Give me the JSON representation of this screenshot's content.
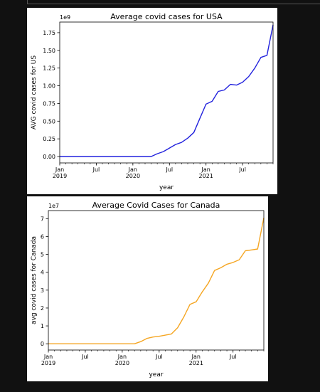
{
  "chart_data": [
    {
      "type": "line",
      "title": "Average covid cases for USA",
      "xlabel": "year",
      "ylabel": "AVG covid cases for US",
      "offset_label": "1e9",
      "color": "#2222dd",
      "x_ticks": [
        {
          "t": 0,
          "lines": [
            "Jan",
            "2019"
          ]
        },
        {
          "t": 6,
          "lines": [
            "Jul"
          ]
        },
        {
          "t": 12,
          "lines": [
            "Jan",
            "2020"
          ]
        },
        {
          "t": 18,
          "lines": [
            "Jul"
          ]
        },
        {
          "t": 24,
          "lines": [
            "Jan",
            "2021"
          ]
        },
        {
          "t": 30,
          "lines": [
            "Jul"
          ]
        }
      ],
      "y_ticks": [
        {
          "v": 0.0,
          "label": "0.00"
        },
        {
          "v": 0.25,
          "label": "0.25"
        },
        {
          "v": 0.5,
          "label": "0.50"
        },
        {
          "v": 0.75,
          "label": "0.75"
        },
        {
          "v": 1.0,
          "label": "1.00"
        },
        {
          "v": 1.25,
          "label": "1.25"
        },
        {
          "v": 1.5,
          "label": "1.50"
        },
        {
          "v": 1.75,
          "label": "1.75"
        }
      ],
      "xlim": [
        0,
        35
      ],
      "ylim": [
        -0.09,
        1.9
      ],
      "x": [
        0,
        1,
        2,
        3,
        4,
        5,
        6,
        7,
        8,
        9,
        10,
        11,
        12,
        13,
        14,
        15,
        16,
        17,
        18,
        19,
        20,
        21,
        22,
        23,
        24,
        25,
        26,
        27,
        28,
        29,
        30,
        31,
        32,
        33,
        34,
        35
      ],
      "values": [
        0,
        0,
        0,
        0,
        0,
        0,
        0,
        0,
        0,
        0,
        0,
        0,
        0,
        0,
        0,
        0.0,
        0.04,
        0.07,
        0.12,
        0.17,
        0.2,
        0.26,
        0.34,
        0.54,
        0.74,
        0.78,
        0.92,
        0.94,
        1.02,
        1.01,
        1.05,
        1.13,
        1.25,
        1.4,
        1.43,
        1.86
      ]
    },
    {
      "type": "line",
      "title": "Average Covid Cases for Canada",
      "xlabel": "year",
      "ylabel": "avg covid cases for Canada",
      "offset_label": "1e7",
      "color": "#f5a623",
      "x_ticks": [
        {
          "t": 0,
          "lines": [
            "Jan",
            "2019"
          ]
        },
        {
          "t": 6,
          "lines": [
            "Jul"
          ]
        },
        {
          "t": 12,
          "lines": [
            "Jan",
            "2020"
          ]
        },
        {
          "t": 18,
          "lines": [
            "Jul"
          ]
        },
        {
          "t": 24,
          "lines": [
            "Jan",
            "2021"
          ]
        },
        {
          "t": 30,
          "lines": [
            "Jul"
          ]
        }
      ],
      "y_ticks": [
        {
          "v": 0,
          "label": "0"
        },
        {
          "v": 1,
          "label": "1"
        },
        {
          "v": 2,
          "label": "2"
        },
        {
          "v": 3,
          "label": "3"
        },
        {
          "v": 4,
          "label": "4"
        },
        {
          "v": 5,
          "label": "5"
        },
        {
          "v": 6,
          "label": "6"
        },
        {
          "v": 7,
          "label": "7"
        }
      ],
      "xlim": [
        0,
        35
      ],
      "ylim": [
        -0.35,
        7.45
      ],
      "x": [
        0,
        1,
        2,
        3,
        4,
        5,
        6,
        7,
        8,
        9,
        10,
        11,
        12,
        13,
        14,
        15,
        16,
        17,
        18,
        19,
        20,
        21,
        22,
        23,
        24,
        25,
        26,
        27,
        28,
        29,
        30,
        31,
        32,
        33,
        34,
        35
      ],
      "values": [
        0,
        0,
        0,
        0,
        0,
        0,
        0,
        0,
        0,
        0,
        0,
        0,
        0,
        0,
        0.0,
        0.12,
        0.3,
        0.38,
        0.42,
        0.48,
        0.55,
        0.9,
        1.5,
        2.2,
        2.35,
        2.9,
        3.4,
        4.1,
        4.25,
        4.45,
        4.55,
        4.7,
        5.2,
        5.25,
        5.3,
        7.05
      ]
    }
  ]
}
